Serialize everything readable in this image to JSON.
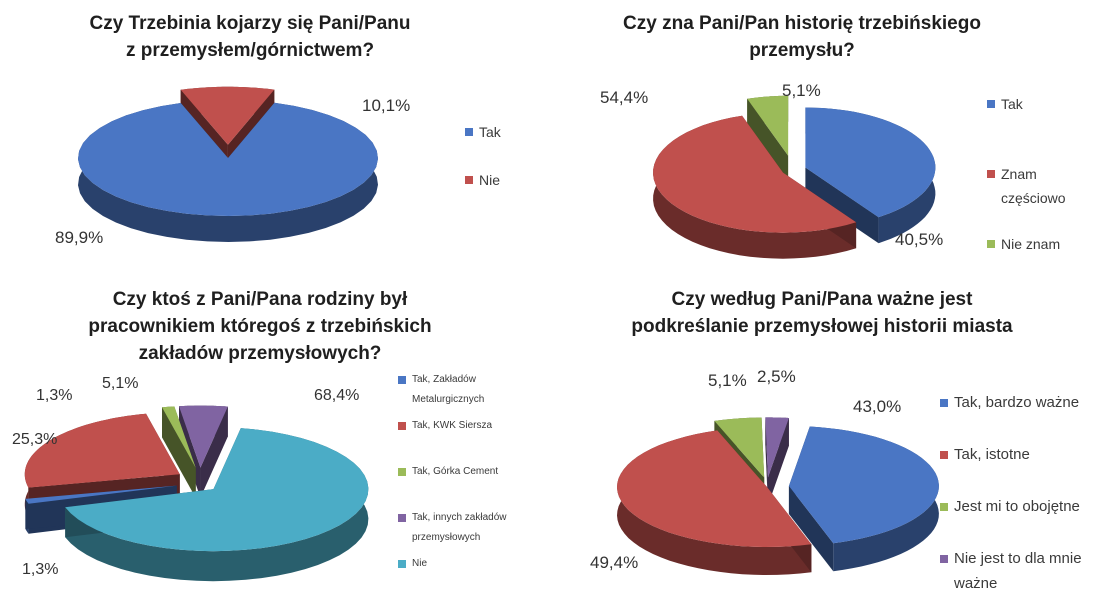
{
  "chart_data": [
    {
      "type": "pie",
      "title": "Czy Trzebinia kojarzy się Pani/Panu\nz  przemysłem/górnictwem?",
      "categories": [
        "Tak",
        "Nie"
      ],
      "values": [
        89.9,
        10.1
      ],
      "value_labels": [
        "89,9%",
        "10,1%"
      ],
      "colors": [
        "#4a76c4",
        "#c0504d"
      ],
      "legend": "right",
      "style": "3d-exploded"
    },
    {
      "type": "pie",
      "title": "Czy zna Pani/Pan historię trzebińskiego\nprzemysłu?",
      "categories": [
        "Tak",
        "Znam\nczęściowo",
        "Nie znam"
      ],
      "values": [
        40.5,
        54.4,
        5.1
      ],
      "value_labels": [
        "40,5%",
        "54,4%",
        "5,1%"
      ],
      "colors": [
        "#4a76c4",
        "#c0504d",
        "#9bbb59"
      ],
      "legend": "right",
      "style": "3d-exploded"
    },
    {
      "type": "pie",
      "title": "Czy ktoś z Pani/Pana rodziny był\npracownikiem któregoś z trzebińskich\nzakładów przemysłowych?",
      "categories": [
        "Tak, Zakładów\nMetalurgicznych",
        "Tak, KWK Siersza",
        "Tak, Górka Cement",
        "Tak, innych zakładów\nprzemysłowych",
        "Nie"
      ],
      "values": [
        1.3,
        25.3,
        1.3,
        5.1,
        68.4
      ],
      "value_labels": [
        "1,3%",
        "25,3%",
        "1,3%",
        "5,1%",
        "68,4%"
      ],
      "colors": [
        "#4a76c4",
        "#c0504d",
        "#9bbb59",
        "#8064a2",
        "#4bacc6"
      ],
      "legend": "right",
      "style": "3d-exploded"
    },
    {
      "type": "pie",
      "title": "Czy według Pani/Pana ważne jest\npodkreślanie przemysłowej historii miasta",
      "categories": [
        "Tak, bardzo ważne",
        "Tak, istotne",
        "Jest mi to obojętne",
        "Nie jest to dla mnie\nważne"
      ],
      "values": [
        43.0,
        49.4,
        5.1,
        2.5
      ],
      "value_labels": [
        "43,0%",
        "49,4%",
        "5,1%",
        "2,5%"
      ],
      "colors": [
        "#4a76c4",
        "#c0504d",
        "#9bbb59",
        "#8064a2"
      ],
      "legend": "right",
      "style": "3d-exploded"
    }
  ]
}
